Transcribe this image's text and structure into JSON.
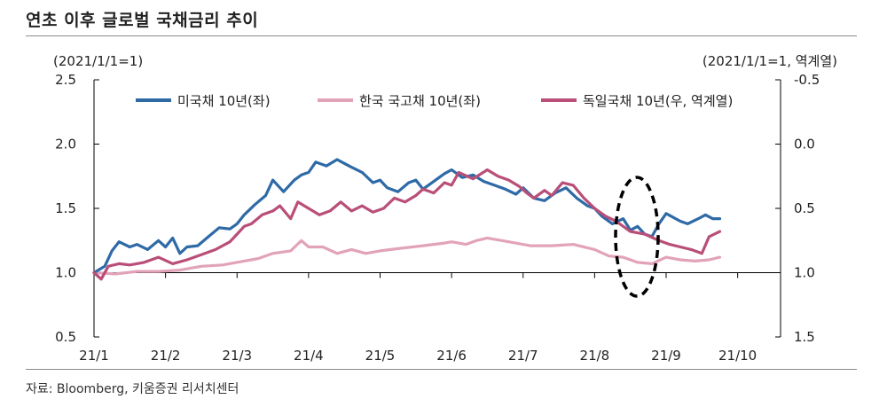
{
  "title": "연초 이후 글로벌 국채금리 추이",
  "source": "자료: Bloomberg, 키움증권 리서치센터",
  "chart_data": {
    "type": "line",
    "left_unit": "(2021/1/1=1)",
    "right_unit": "(2021/1/1=1, 역계열)",
    "left_axis": {
      "ylim": [
        0.5,
        2.5
      ],
      "ticks": [
        "2.5",
        "2.0",
        "1.5",
        "1.0",
        "0.5"
      ]
    },
    "right_axis": {
      "ylim": [
        -0.5,
        1.5
      ],
      "inverted": true,
      "ticks": [
        "-0.5",
        "0.0",
        "0.5",
        "1.0",
        "1.5"
      ]
    },
    "x_axis": {
      "range": [
        0,
        9.6
      ],
      "tick_labels": [
        "21/1",
        "21/2",
        "21/3",
        "21/4",
        "21/5",
        "21/6",
        "21/7",
        "21/8",
        "21/9",
        "21/10"
      ]
    },
    "legend": {
      "placement": "top"
    },
    "series": [
      {
        "name": "미국채 10년(좌)",
        "axis": "left",
        "color": "#2e6aa6",
        "x": [
          0,
          0.15,
          0.25,
          0.35,
          0.5,
          0.6,
          0.75,
          0.9,
          1.0,
          1.1,
          1.2,
          1.3,
          1.45,
          1.6,
          1.75,
          1.9,
          2.0,
          2.1,
          2.25,
          2.4,
          2.5,
          2.65,
          2.8,
          2.9,
          3.0,
          3.1,
          3.25,
          3.4,
          3.5,
          3.6,
          3.75,
          3.9,
          4.0,
          4.1,
          4.25,
          4.4,
          4.5,
          4.6,
          4.75,
          4.9,
          5.0,
          5.15,
          5.3,
          5.45,
          5.6,
          5.75,
          5.9,
          6.0,
          6.15,
          6.3,
          6.45,
          6.6,
          6.75,
          6.9,
          7.0,
          7.1,
          7.25,
          7.4,
          7.5,
          7.6,
          7.7,
          7.8,
          7.9,
          8.0,
          8.1,
          8.2,
          8.3,
          8.45,
          8.55,
          8.65,
          8.75
        ],
        "values": [
          1.0,
          1.05,
          1.17,
          1.24,
          1.2,
          1.22,
          1.18,
          1.25,
          1.2,
          1.27,
          1.15,
          1.2,
          1.21,
          1.28,
          1.35,
          1.34,
          1.38,
          1.45,
          1.53,
          1.6,
          1.72,
          1.63,
          1.72,
          1.76,
          1.78,
          1.86,
          1.83,
          1.88,
          1.85,
          1.82,
          1.78,
          1.7,
          1.72,
          1.66,
          1.63,
          1.7,
          1.72,
          1.65,
          1.71,
          1.77,
          1.8,
          1.74,
          1.76,
          1.71,
          1.68,
          1.65,
          1.61,
          1.66,
          1.58,
          1.56,
          1.62,
          1.66,
          1.58,
          1.52,
          1.5,
          1.44,
          1.38,
          1.42,
          1.33,
          1.36,
          1.3,
          1.28,
          1.38,
          1.46,
          1.43,
          1.4,
          1.38,
          1.42,
          1.45,
          1.42,
          1.42
        ]
      },
      {
        "name": "한국 국고채 10년(좌)",
        "axis": "left",
        "color": "#e2a3ba",
        "x": [
          0,
          0.3,
          0.6,
          0.9,
          1.2,
          1.5,
          1.8,
          2.1,
          2.3,
          2.5,
          2.75,
          2.9,
          3.0,
          3.2,
          3.4,
          3.6,
          3.8,
          4.0,
          4.3,
          4.6,
          4.9,
          5.0,
          5.2,
          5.35,
          5.5,
          5.8,
          6.1,
          6.4,
          6.7,
          7.0,
          7.2,
          7.4,
          7.6,
          7.8,
          8.0,
          8.2,
          8.4,
          8.6,
          8.75
        ],
        "values": [
          1.0,
          0.99,
          1.01,
          1.01,
          1.02,
          1.05,
          1.06,
          1.09,
          1.11,
          1.15,
          1.17,
          1.25,
          1.2,
          1.2,
          1.15,
          1.18,
          1.15,
          1.17,
          1.19,
          1.21,
          1.23,
          1.24,
          1.22,
          1.25,
          1.27,
          1.24,
          1.21,
          1.21,
          1.22,
          1.18,
          1.13,
          1.12,
          1.08,
          1.07,
          1.12,
          1.1,
          1.09,
          1.1,
          1.12
        ]
      },
      {
        "name": "독일국채 10년(우, 역계열)",
        "axis": "right",
        "color": "#b94e78",
        "x": [
          0,
          0.1,
          0.2,
          0.35,
          0.5,
          0.7,
          0.9,
          1.1,
          1.3,
          1.5,
          1.7,
          1.9,
          2.0,
          2.1,
          2.2,
          2.35,
          2.5,
          2.6,
          2.75,
          2.85,
          3.0,
          3.15,
          3.3,
          3.45,
          3.6,
          3.75,
          3.9,
          4.05,
          4.2,
          4.35,
          4.5,
          4.6,
          4.75,
          4.9,
          5.0,
          5.1,
          5.3,
          5.5,
          5.65,
          5.8,
          5.95,
          6.05,
          6.15,
          6.3,
          6.4,
          6.55,
          6.7,
          6.85,
          7.0,
          7.15,
          7.3,
          7.5,
          7.7,
          7.9,
          8.05,
          8.2,
          8.35,
          8.5,
          8.6,
          8.75
        ],
        "values": [
          1.0,
          1.05,
          0.95,
          0.93,
          0.94,
          0.92,
          0.88,
          0.93,
          0.9,
          0.86,
          0.82,
          0.76,
          0.7,
          0.64,
          0.62,
          0.55,
          0.52,
          0.48,
          0.58,
          0.45,
          0.5,
          0.55,
          0.52,
          0.45,
          0.52,
          0.48,
          0.53,
          0.5,
          0.42,
          0.45,
          0.4,
          0.35,
          0.38,
          0.3,
          0.32,
          0.22,
          0.27,
          0.2,
          0.25,
          0.28,
          0.33,
          0.38,
          0.42,
          0.36,
          0.4,
          0.3,
          0.32,
          0.42,
          0.5,
          0.56,
          0.6,
          0.68,
          0.7,
          0.75,
          0.78,
          0.8,
          0.82,
          0.85,
          0.72,
          0.68
        ]
      }
    ]
  }
}
